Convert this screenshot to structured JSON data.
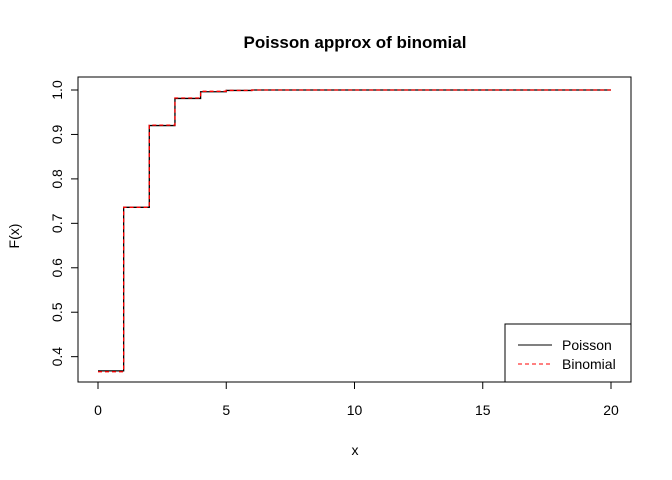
{
  "chart_data": {
    "type": "line",
    "title": "Poisson approx of binomial",
    "xlabel": "x",
    "ylabel": "F(x)",
    "xlim": [
      0,
      20
    ],
    "ylim": [
      0.37,
      1.0
    ],
    "x_ticks": [
      0,
      5,
      10,
      15,
      20
    ],
    "y_ticks": [
      0.4,
      0.5,
      0.6,
      0.7,
      0.8,
      0.9,
      1.0
    ],
    "y_tick_labels": [
      "0.4",
      "0.5",
      "0.6",
      "0.7",
      "0.8",
      "0.9",
      "1.0"
    ],
    "grid": false,
    "legend_position": "bottom-right",
    "x": [
      0,
      1,
      2,
      3,
      4,
      5,
      6,
      7,
      8,
      9,
      10,
      11,
      12,
      13,
      14,
      15,
      16,
      17,
      18,
      19,
      20
    ],
    "series": [
      {
        "name": "Poisson",
        "color": "#000000",
        "linestyle": "solid",
        "values": [
          0.368,
          0.736,
          0.92,
          0.981,
          0.996,
          0.999,
          1.0,
          1.0,
          1.0,
          1.0,
          1.0,
          1.0,
          1.0,
          1.0,
          1.0,
          1.0,
          1.0,
          1.0,
          1.0,
          1.0,
          1.0
        ]
      },
      {
        "name": "Binomial",
        "color": "#ff0000",
        "linestyle": "dashed",
        "values": [
          0.366,
          0.736,
          0.921,
          0.982,
          0.997,
          0.999,
          1.0,
          1.0,
          1.0,
          1.0,
          1.0,
          1.0,
          1.0,
          1.0,
          1.0,
          1.0,
          1.0,
          1.0,
          1.0,
          1.0,
          1.0
        ]
      }
    ]
  }
}
